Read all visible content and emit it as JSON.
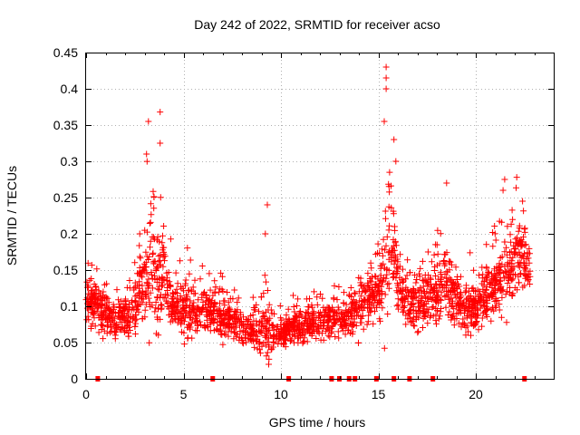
{
  "chart_data": {
    "type": "scatter",
    "title": "Day 242 of 2022, SRMTID for receiver acso",
    "xlabel": "GPS time / hours",
    "ylabel": "SRMTID / TECUs",
    "xlim": [
      0,
      24
    ],
    "ylim": [
      0,
      0.45
    ],
    "grid": true,
    "marker": "+",
    "color": "#ff0000",
    "x_ticks": [
      "0",
      "5",
      "10",
      "15",
      "20"
    ],
    "x_tick_values": [
      0,
      5,
      10,
      15,
      20
    ],
    "y_ticks": [
      "0",
      "0.05",
      "0.1",
      "0.15",
      "0.2",
      "0.25",
      "0.3",
      "0.35",
      "0.4",
      "0.45"
    ],
    "y_tick_values": [
      0,
      0.05,
      0.1,
      0.15,
      0.2,
      0.25,
      0.3,
      0.35,
      0.4,
      0.45
    ],
    "envelope": {
      "x": [
        0.0,
        0.5,
        1.0,
        1.5,
        2.0,
        2.5,
        3.0,
        3.3,
        3.6,
        3.9,
        4.2,
        4.5,
        5.0,
        5.5,
        6.0,
        6.5,
        7.0,
        7.5,
        8.0,
        8.5,
        9.0,
        9.3,
        9.6,
        10.0,
        10.5,
        11.0,
        11.5,
        12.0,
        12.5,
        13.0,
        13.5,
        14.0,
        14.5,
        15.0,
        15.3,
        15.6,
        15.9,
        16.2,
        16.5,
        17.0,
        17.5,
        18.0,
        18.5,
        19.0,
        19.5,
        20.0,
        20.5,
        21.0,
        21.5,
        22.0,
        22.5,
        22.8
      ],
      "center": [
        0.11,
        0.1,
        0.09,
        0.08,
        0.085,
        0.1,
        0.13,
        0.16,
        0.14,
        0.15,
        0.11,
        0.1,
        0.09,
        0.09,
        0.1,
        0.095,
        0.08,
        0.08,
        0.075,
        0.07,
        0.065,
        0.08,
        0.06,
        0.06,
        0.07,
        0.07,
        0.08,
        0.08,
        0.085,
        0.08,
        0.09,
        0.1,
        0.11,
        0.12,
        0.16,
        0.2,
        0.15,
        0.12,
        0.11,
        0.1,
        0.11,
        0.12,
        0.13,
        0.11,
        0.09,
        0.1,
        0.11,
        0.13,
        0.14,
        0.16,
        0.17,
        0.14
      ],
      "spread": [
        0.04,
        0.05,
        0.04,
        0.03,
        0.04,
        0.06,
        0.09,
        0.12,
        0.11,
        0.11,
        0.06,
        0.05,
        0.05,
        0.05,
        0.05,
        0.04,
        0.04,
        0.04,
        0.035,
        0.035,
        0.04,
        0.08,
        0.03,
        0.025,
        0.03,
        0.03,
        0.035,
        0.04,
        0.04,
        0.035,
        0.04,
        0.05,
        0.05,
        0.06,
        0.13,
        0.11,
        0.08,
        0.06,
        0.05,
        0.05,
        0.05,
        0.07,
        0.07,
        0.06,
        0.04,
        0.04,
        0.05,
        0.06,
        0.07,
        0.08,
        0.07,
        0.04
      ]
    },
    "spikes": [
      {
        "x": 3.2,
        "y": 0.355
      },
      {
        "x": 3.8,
        "y": 0.368
      },
      {
        "x": 3.8,
        "y": 0.325
      },
      {
        "x": 3.1,
        "y": 0.31
      },
      {
        "x": 9.3,
        "y": 0.24
      },
      {
        "x": 9.2,
        "y": 0.2
      },
      {
        "x": 15.4,
        "y": 0.43
      },
      {
        "x": 15.4,
        "y": 0.415
      },
      {
        "x": 15.4,
        "y": 0.4
      },
      {
        "x": 15.3,
        "y": 0.355
      },
      {
        "x": 15.8,
        "y": 0.33
      },
      {
        "x": 15.9,
        "y": 0.3
      },
      {
        "x": 18.5,
        "y": 0.27
      },
      {
        "x": 21.4,
        "y": 0.26
      },
      {
        "x": 22.1,
        "y": 0.278
      },
      {
        "x": 22.4,
        "y": 0.245
      }
    ],
    "zeros": [
      0.6,
      6.5,
      10.4,
      12.6,
      13.0,
      13.5,
      13.8,
      14.9,
      15.8,
      16.6,
      17.8,
      22.5
    ],
    "n_points": 2400
  }
}
